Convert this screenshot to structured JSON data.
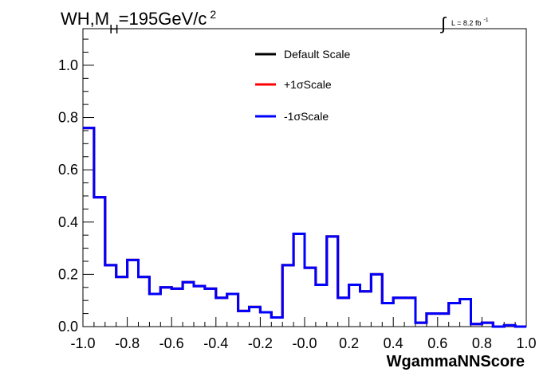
{
  "chart_data": {
    "type": "line",
    "title": {
      "main": "WH,M",
      "sub": "H",
      "rest": "=195GeV/c",
      "sup": "2"
    },
    "lumi": {
      "integral_symbol": "∫",
      "text": "L = 8.2 fb",
      "sup": "-1"
    },
    "xlabel": "WgammaNNScore",
    "ylabel": "",
    "xlim": [
      -1.0,
      1.0
    ],
    "ylim": [
      0.0,
      1.14
    ],
    "x_ticks": [
      "-1.0",
      "-0.8",
      "-0.6",
      "-0.4",
      "-0.2",
      "-0.0",
      "0.2",
      "0.4",
      "0.6",
      "0.8",
      "1.0"
    ],
    "y_ticks": [
      "0.0",
      "0.2",
      "0.4",
      "0.6",
      "0.8",
      "1.0"
    ],
    "bin_edges_start": -1.0,
    "bin_width": 0.05,
    "series": [
      {
        "name": "Default Scale",
        "color": "#000000",
        "values": [
          0.76,
          0.495,
          0.235,
          0.19,
          0.255,
          0.19,
          0.125,
          0.15,
          0.145,
          0.17,
          0.155,
          0.145,
          0.11,
          0.125,
          0.06,
          0.075,
          0.055,
          0.035,
          0.235,
          0.355,
          0.225,
          0.16,
          0.345,
          0.11,
          0.16,
          0.135,
          0.2,
          0.09,
          0.11,
          0.11,
          0.015,
          0.05,
          0.05,
          0.09,
          0.105,
          0.01,
          0.015,
          0.0,
          0.005,
          0.0
        ]
      },
      {
        "name": "+1σScale",
        "color": "#ff0000",
        "values": [
          0.76,
          0.495,
          0.235,
          0.19,
          0.255,
          0.19,
          0.125,
          0.15,
          0.145,
          0.17,
          0.155,
          0.145,
          0.11,
          0.125,
          0.06,
          0.075,
          0.055,
          0.035,
          0.235,
          0.355,
          0.225,
          0.16,
          0.345,
          0.11,
          0.16,
          0.135,
          0.2,
          0.09,
          0.11,
          0.11,
          0.015,
          0.05,
          0.05,
          0.09,
          0.105,
          0.01,
          0.015,
          0.0,
          0.005,
          0.0
        ]
      },
      {
        "name": "-1σScale",
        "color": "#0000ff",
        "values": [
          0.76,
          0.495,
          0.235,
          0.19,
          0.255,
          0.19,
          0.125,
          0.15,
          0.145,
          0.17,
          0.155,
          0.145,
          0.11,
          0.125,
          0.06,
          0.075,
          0.055,
          0.035,
          0.235,
          0.355,
          0.225,
          0.16,
          0.345,
          0.11,
          0.16,
          0.135,
          0.2,
          0.09,
          0.11,
          0.11,
          0.015,
          0.05,
          0.05,
          0.09,
          0.105,
          0.01,
          0.015,
          0.0,
          0.005,
          0.0
        ]
      }
    ],
    "legend": [
      "Default Scale",
      "+1σScale",
      "-1σScale"
    ],
    "legend_position": "top-center",
    "grid": false
  }
}
